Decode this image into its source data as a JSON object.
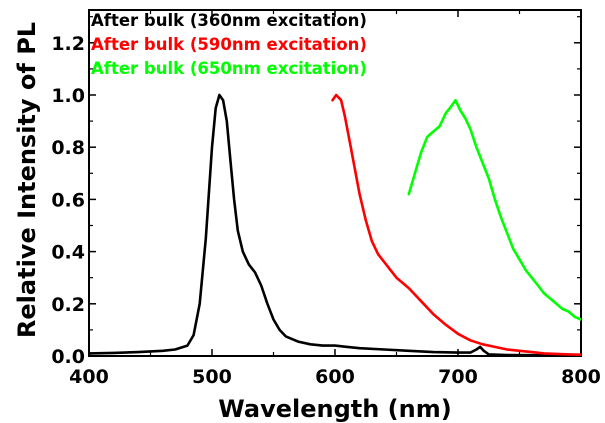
{
  "chart_data": {
    "type": "line",
    "xlabel": "Wavelength (nm)",
    "ylabel": "Relative Intensity of PL",
    "xlim": [
      400,
      800
    ],
    "ylim": [
      0,
      1.3
    ],
    "x_ticks": [
      "400",
      "500",
      "600",
      "700",
      "800"
    ],
    "y_ticks": [
      "0.0",
      "0.2",
      "0.4",
      "0.6",
      "0.8",
      "1.0",
      "1.2"
    ],
    "grid": false,
    "legend_position": "top-left",
    "series": [
      {
        "name": "After bulk (360nm excitation)",
        "color": "#000000",
        "x": [
          400,
          420,
          440,
          460,
          470,
          480,
          485,
          490,
          495,
          500,
          503,
          506,
          509,
          512,
          515,
          518,
          521,
          525,
          530,
          535,
          540,
          545,
          550,
          555,
          560,
          570,
          580,
          590,
          600,
          610,
          620,
          640,
          660,
          680,
          700,
          710,
          715,
          718,
          721,
          725,
          740,
          760,
          780,
          800
        ],
        "y": [
          0.01,
          0.012,
          0.015,
          0.02,
          0.025,
          0.04,
          0.08,
          0.2,
          0.45,
          0.8,
          0.95,
          1.0,
          0.98,
          0.9,
          0.75,
          0.6,
          0.48,
          0.4,
          0.35,
          0.32,
          0.27,
          0.2,
          0.14,
          0.1,
          0.075,
          0.055,
          0.045,
          0.04,
          0.04,
          0.035,
          0.03,
          0.025,
          0.02,
          0.015,
          0.013,
          0.013,
          0.025,
          0.035,
          0.02,
          0.006,
          0.004,
          0.003,
          0.002,
          0.002
        ]
      },
      {
        "name": "After bulk (590nm excitation)",
        "color": "#ff0000",
        "x": [
          598,
          601,
          605,
          608,
          612,
          616,
          620,
          625,
          630,
          635,
          640,
          645,
          650,
          660,
          670,
          680,
          690,
          700,
          710,
          720,
          730,
          740,
          750,
          760,
          770,
          780,
          790,
          800
        ],
        "y": [
          0.98,
          1.0,
          0.98,
          0.92,
          0.82,
          0.72,
          0.62,
          0.52,
          0.44,
          0.39,
          0.36,
          0.33,
          0.3,
          0.26,
          0.21,
          0.16,
          0.12,
          0.085,
          0.06,
          0.045,
          0.035,
          0.025,
          0.02,
          0.015,
          0.01,
          0.008,
          0.006,
          0.005
        ]
      },
      {
        "name": "After bulk (650nm excitation)",
        "color": "#00ff00",
        "x": [
          660,
          665,
          670,
          675,
          680,
          685,
          690,
          695,
          698,
          702,
          706,
          710,
          715,
          720,
          725,
          730,
          735,
          740,
          745,
          750,
          755,
          760,
          765,
          770,
          775,
          780,
          785,
          790,
          795,
          800
        ],
        "y": [
          0.62,
          0.7,
          0.78,
          0.84,
          0.86,
          0.88,
          0.93,
          0.96,
          0.98,
          0.94,
          0.91,
          0.87,
          0.8,
          0.74,
          0.68,
          0.6,
          0.53,
          0.47,
          0.41,
          0.37,
          0.33,
          0.3,
          0.27,
          0.24,
          0.22,
          0.2,
          0.18,
          0.17,
          0.15,
          0.14
        ]
      }
    ]
  }
}
